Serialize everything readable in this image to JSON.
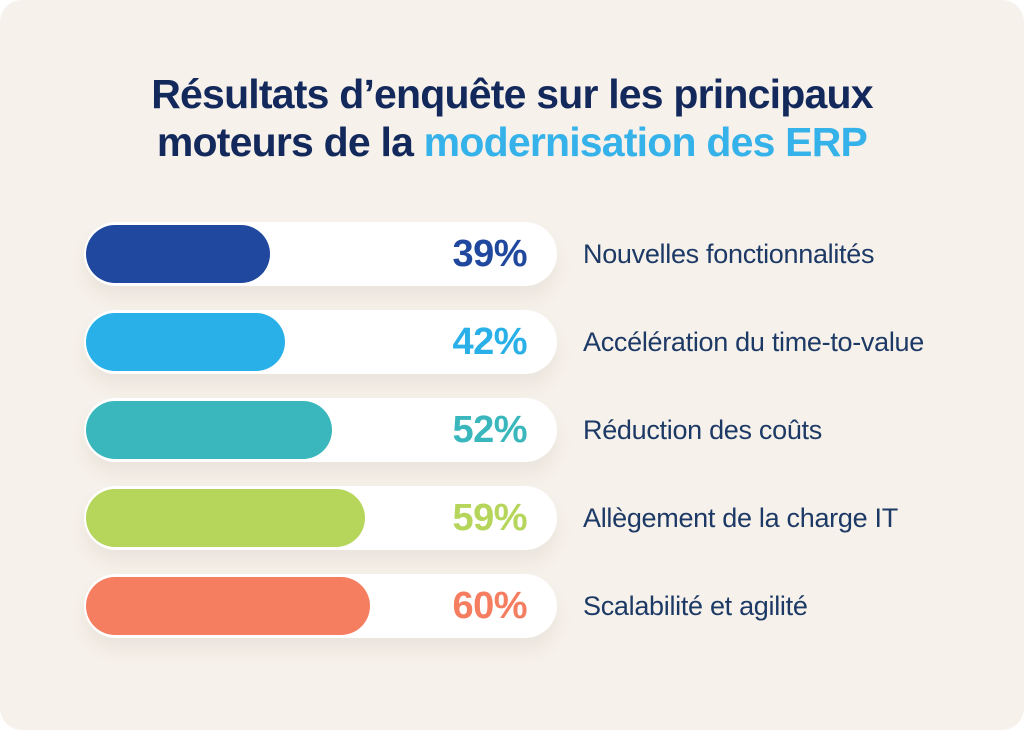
{
  "title": {
    "line1": "Résultats d’enquête sur les principaux",
    "line2_prefix": "moteurs de la ",
    "line2_highlight": "modernisation des ERP"
  },
  "colors": {
    "card_background": "#f6f1ea",
    "title_navy": "#13295c",
    "title_highlight_blue": "#35b2e9",
    "label_navy": "#1d3a66",
    "track_white": "#ffffff"
  },
  "chart_data": {
    "type": "bar",
    "orientation": "horizontal",
    "title": "Résultats d’enquête sur les principaux moteurs de la modernisation des ERP",
    "xlabel": "",
    "ylabel": "",
    "xlim": [
      0,
      100
    ],
    "grid": false,
    "legend": false,
    "value_labels_inside_track": true,
    "categories": [
      "Nouvelles fonctionnalités",
      "Accélération du time-to-value",
      "Réduction des coûts",
      "Allègement de la charge IT",
      "Scalabilité et agilité"
    ],
    "values": [
      39,
      42,
      52,
      59,
      60
    ],
    "rows": [
      {
        "label": "Nouvelles fonctionnalités",
        "value": 39,
        "percent_text": "39%",
        "color": "#20489e"
      },
      {
        "label": "Accélération du time-to-value",
        "value": 42,
        "percent_text": "42%",
        "color": "#29b0e8"
      },
      {
        "label": "Réduction des coûts",
        "value": 52,
        "percent_text": "52%",
        "color": "#3ab7bc"
      },
      {
        "label": "Allègement de la charge IT",
        "value": 59,
        "percent_text": "59%",
        "color": "#b6d55b"
      },
      {
        "label": "Scalabilité et agilité",
        "value": 60,
        "percent_text": "60%",
        "color": "#f67e60"
      }
    ]
  }
}
